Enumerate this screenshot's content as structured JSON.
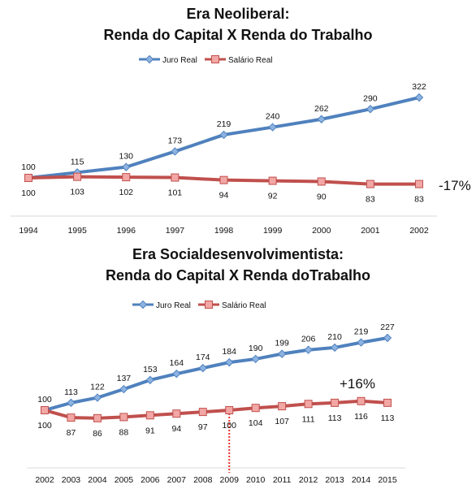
{
  "chart_data": [
    {
      "type": "line",
      "title": "Era Neoliberal:",
      "subtitle": "Renda do Capital X Renda do Trabalho",
      "categories": [
        "1994",
        "1995",
        "1996",
        "1997",
        "1998",
        "1999",
        "2000",
        "2001",
        "2002"
      ],
      "series": [
        {
          "name": "Juro Real",
          "color": "#4f81bd",
          "marker": "diamond",
          "values": [
            100,
            115,
            130,
            173,
            219,
            240,
            262,
            290,
            322
          ]
        },
        {
          "name": "Salário Real",
          "color": "#c0504d",
          "marker": "square",
          "values": [
            100,
            103,
            102,
            101,
            94,
            92,
            90,
            83,
            83
          ]
        }
      ],
      "annotation": "-17%",
      "legend": "top-center"
    },
    {
      "type": "line",
      "title": "Era Socialdesenvolvimentista:",
      "subtitle": "Renda do Capital X Renda doTrabalho",
      "categories": [
        "2002",
        "2003",
        "2004",
        "2005",
        "2006",
        "2007",
        "2008",
        "2009",
        "2010",
        "2011",
        "2012",
        "2013",
        "2014",
        "2015"
      ],
      "series": [
        {
          "name": "Juro Real",
          "color": "#4f81bd",
          "marker": "diamond",
          "values": [
            100,
            113,
            122,
            137,
            153,
            164,
            174,
            184,
            190,
            199,
            206,
            210,
            219,
            227
          ]
        },
        {
          "name": "Salário Real",
          "color": "#c0504d",
          "marker": "square",
          "values": [
            100,
            87,
            86,
            88,
            91,
            94,
            97,
            100,
            104,
            107,
            111,
            113,
            116,
            113
          ]
        }
      ],
      "annotation": "+16%",
      "marker_category": "2009",
      "legend": "top-center"
    }
  ]
}
